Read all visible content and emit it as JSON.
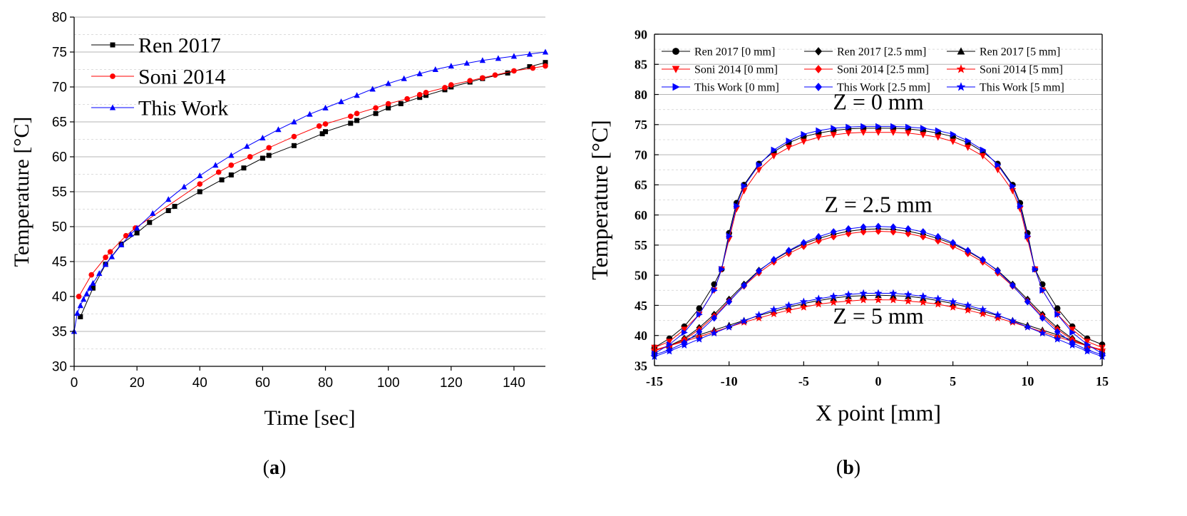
{
  "chart_data": [
    {
      "id": "a",
      "type": "line",
      "panel_label": "a",
      "xlabel": "Time [sec]",
      "ylabel": "Temperature [°C]",
      "xlim": [
        0,
        150
      ],
      "ylim": [
        30,
        80
      ],
      "xticks": [
        0,
        20,
        40,
        60,
        80,
        100,
        120,
        140
      ],
      "yticks": [
        30,
        35,
        40,
        45,
        50,
        55,
        60,
        65,
        70,
        75,
        80
      ],
      "grid": true,
      "legend_position": "top-left",
      "series": [
        {
          "name": "Ren 2017",
          "color": "#000000",
          "marker": "square",
          "x": [
            2,
            6,
            10,
            15,
            20,
            24,
            30,
            32,
            40,
            47,
            50,
            54,
            60,
            62,
            70,
            79,
            80,
            88,
            90,
            96,
            100,
            104,
            110,
            112,
            118,
            120,
            126,
            130,
            138,
            145,
            150
          ],
          "y": [
            37.1,
            41.2,
            44.6,
            47.5,
            49.1,
            50.6,
            52.3,
            52.9,
            55.0,
            56.7,
            57.4,
            58.4,
            59.8,
            60.2,
            61.6,
            63.3,
            63.6,
            64.8,
            65.2,
            66.2,
            67.0,
            67.6,
            68.5,
            68.8,
            69.6,
            70.0,
            70.7,
            71.2,
            72.0,
            72.9,
            73.5
          ]
        },
        {
          "name": "Soni 2014",
          "color": "#ff0000",
          "marker": "circle",
          "x": [
            1.5,
            5.5,
            10,
            11.5,
            16.5,
            19.5,
            40,
            46,
            50,
            56,
            62,
            70,
            78,
            80,
            88,
            90,
            96,
            100,
            106,
            110,
            112,
            118,
            120,
            126,
            130,
            134,
            140,
            146,
            150
          ],
          "y": [
            40.0,
            43.1,
            45.6,
            46.4,
            48.7,
            49.8,
            56.1,
            57.8,
            58.8,
            60.0,
            61.3,
            62.9,
            64.4,
            64.7,
            65.8,
            66.2,
            67.0,
            67.6,
            68.3,
            68.9,
            69.2,
            69.9,
            70.3,
            70.9,
            71.3,
            71.7,
            72.3,
            72.7,
            73.0
          ]
        },
        {
          "name": "This Work",
          "color": "#0000ff",
          "marker": "triangle",
          "x": [
            0,
            1,
            2,
            3,
            4,
            5,
            6,
            8,
            10,
            12,
            15,
            18,
            20,
            25,
            30,
            35,
            40,
            45,
            50,
            55,
            60,
            65,
            70,
            75,
            80,
            85,
            90,
            95,
            100,
            105,
            110,
            115,
            120,
            125,
            130,
            135,
            140,
            145,
            150
          ],
          "y": [
            35.0,
            37.6,
            38.7,
            39.6,
            40.4,
            41.2,
            41.9,
            43.3,
            44.6,
            45.7,
            47.4,
            48.9,
            49.8,
            51.9,
            53.9,
            55.7,
            57.3,
            58.8,
            60.2,
            61.5,
            62.7,
            63.9,
            65.0,
            66.1,
            67.0,
            67.9,
            68.8,
            69.7,
            70.5,
            71.2,
            71.9,
            72.5,
            73.0,
            73.4,
            73.8,
            74.1,
            74.4,
            74.7,
            75.0
          ]
        }
      ]
    },
    {
      "id": "b",
      "type": "line",
      "panel_label": "b",
      "xlabel": "X point [mm]",
      "ylabel": "Temperature [°C]",
      "xlim": [
        -15,
        15
      ],
      "ylim": [
        35,
        90
      ],
      "xticks": [
        -15,
        -10,
        -5,
        0,
        5,
        10,
        15
      ],
      "yticks": [
        35,
        40,
        45,
        50,
        55,
        60,
        65,
        70,
        75,
        80,
        85,
        90
      ],
      "grid": true,
      "legend_position": "top",
      "annotations": [
        {
          "text": "Z = 0 mm",
          "x": 0,
          "y": 77.5
        },
        {
          "text": "Z = 2.5 mm",
          "x": 0,
          "y": 60.5
        },
        {
          "text": "Z = 5 mm",
          "x": 0,
          "y": 42.0
        }
      ],
      "series": [
        {
          "name": "Ren 2017 [0 mm]",
          "color": "#000000",
          "marker": "circle",
          "x": [
            -15,
            -14,
            -13,
            -12,
            -11,
            -10.5,
            -10,
            -9.5,
            -9,
            -8,
            -7,
            -6,
            -5,
            -4,
            -3,
            -2,
            -1,
            0,
            1,
            2,
            3,
            4,
            5,
            6,
            7,
            8,
            9,
            9.5,
            10,
            10.5,
            11,
            12,
            13,
            14,
            15
          ],
          "y": [
            38.0,
            39.5,
            41.5,
            44.5,
            48.5,
            51.0,
            57.0,
            62.0,
            65.0,
            68.5,
            70.5,
            72.0,
            73.0,
            73.6,
            74.0,
            74.3,
            74.4,
            74.4,
            74.4,
            74.3,
            74.0,
            73.6,
            73.0,
            72.0,
            70.5,
            68.5,
            65.0,
            62.0,
            57.0,
            51.0,
            48.5,
            44.5,
            41.5,
            39.5,
            38.5
          ]
        },
        {
          "name": "Ren 2017 [2.5 mm]",
          "color": "#000000",
          "marker": "diamond",
          "x": [
            -15,
            -14,
            -13,
            -12,
            -11,
            -10,
            -9,
            -8,
            -7,
            -6,
            -5,
            -4,
            -3,
            -2,
            -1,
            0,
            1,
            2,
            3,
            4,
            5,
            6,
            7,
            8,
            9,
            10,
            11,
            12,
            13,
            14,
            15
          ],
          "y": [
            37.5,
            38.3,
            39.5,
            41.3,
            43.5,
            46.0,
            48.5,
            50.8,
            52.5,
            54.0,
            55.2,
            56.1,
            56.8,
            57.3,
            57.6,
            57.7,
            57.6,
            57.3,
            56.8,
            56.1,
            55.2,
            54.0,
            52.5,
            50.8,
            48.5,
            46.0,
            43.5,
            41.3,
            39.5,
            38.3,
            37.5
          ]
        },
        {
          "name": "Ren 2017 [5 mm]",
          "color": "#000000",
          "marker": "triangle",
          "x": [
            -15,
            -14,
            -13,
            -12,
            -11,
            -10,
            -9,
            -8,
            -7,
            -6,
            -5,
            -4,
            -3,
            -2,
            -1,
            0,
            1,
            2,
            3,
            4,
            5,
            6,
            7,
            8,
            9,
            10,
            11,
            12,
            13,
            14,
            15
          ],
          "y": [
            37.5,
            38.3,
            39.2,
            40.1,
            40.9,
            41.7,
            42.5,
            43.3,
            44.0,
            44.7,
            45.3,
            45.8,
            46.2,
            46.5,
            46.6,
            46.7,
            46.6,
            46.5,
            46.2,
            45.8,
            45.3,
            44.7,
            44.0,
            43.3,
            42.5,
            41.7,
            40.9,
            40.1,
            39.2,
            38.3,
            37.5
          ]
        },
        {
          "name": "Soni 2014 [0 mm]",
          "color": "#ff0000",
          "marker": "triangle-down",
          "x": [
            -15,
            -14,
            -13,
            -12,
            -11,
            -10.5,
            -10,
            -9.5,
            -9,
            -8,
            -7,
            -6,
            -5,
            -4,
            -3,
            -2,
            -1,
            0,
            1,
            2,
            3,
            4,
            5,
            6,
            7,
            8,
            9,
            9.5,
            10,
            10.5,
            11,
            12,
            13,
            14,
            15
          ],
          "y": [
            38.0,
            39.0,
            41.0,
            43.5,
            47.5,
            51.0,
            56.0,
            61.0,
            64.0,
            67.5,
            69.8,
            71.2,
            72.2,
            72.9,
            73.3,
            73.6,
            73.7,
            73.7,
            73.7,
            73.6,
            73.3,
            72.9,
            72.2,
            71.2,
            69.8,
            67.5,
            64.0,
            61.0,
            56.0,
            51.0,
            47.5,
            43.5,
            41.0,
            39.0,
            38.0
          ]
        },
        {
          "name": "Soni 2014 [2.5 mm]",
          "color": "#ff0000",
          "marker": "diamond",
          "x": [
            -15,
            -14,
            -13,
            -12,
            -11,
            -10,
            -9,
            -8,
            -7,
            -6,
            -5,
            -4,
            -3,
            -2,
            -1,
            0,
            1,
            2,
            3,
            4,
            5,
            6,
            7,
            8,
            9,
            10,
            11,
            12,
            13,
            14,
            15
          ],
          "y": [
            37.5,
            38.2,
            39.3,
            41.0,
            43.2,
            45.7,
            48.2,
            50.4,
            52.2,
            53.6,
            54.8,
            55.7,
            56.4,
            56.9,
            57.2,
            57.3,
            57.2,
            56.9,
            56.4,
            55.7,
            54.8,
            53.6,
            52.2,
            50.4,
            48.2,
            45.7,
            43.2,
            41.0,
            39.3,
            38.2,
            37.5
          ]
        },
        {
          "name": "Soni 2014 [5 mm]",
          "color": "#ff0000",
          "marker": "star",
          "x": [
            -15,
            -14,
            -13,
            -12,
            -11,
            -10,
            -9,
            -8,
            -7,
            -6,
            -5,
            -4,
            -3,
            -2,
            -1,
            0,
            1,
            2,
            3,
            4,
            5,
            6,
            7,
            8,
            9,
            10,
            11,
            12,
            13,
            14,
            15
          ],
          "y": [
            37.6,
            38.3,
            39.0,
            39.8,
            40.6,
            41.4,
            42.2,
            42.9,
            43.6,
            44.2,
            44.7,
            45.2,
            45.5,
            45.7,
            45.9,
            45.9,
            45.9,
            45.7,
            45.5,
            45.2,
            44.7,
            44.2,
            43.6,
            42.9,
            42.2,
            41.4,
            40.6,
            39.8,
            39.0,
            38.3,
            37.6
          ]
        },
        {
          "name": "This Work [0 mm]",
          "color": "#0000ff",
          "marker": "triangle-right",
          "x": [
            -15,
            -14,
            -13,
            -12,
            -11,
            -10.5,
            -10,
            -9.5,
            -9,
            -8,
            -7,
            -6,
            -5,
            -4,
            -3,
            -2,
            -1,
            0,
            1,
            2,
            3,
            4,
            5,
            6,
            7,
            8,
            9,
            9.5,
            10,
            10.5,
            11,
            12,
            13,
            14,
            15
          ],
          "y": [
            37.0,
            38.5,
            40.5,
            43.5,
            47.5,
            51.0,
            56.5,
            61.5,
            64.8,
            68.3,
            70.8,
            72.3,
            73.4,
            74.0,
            74.4,
            74.6,
            74.7,
            74.7,
            74.7,
            74.6,
            74.4,
            74.0,
            73.4,
            72.3,
            70.8,
            68.3,
            64.8,
            61.5,
            56.5,
            51.0,
            47.5,
            43.5,
            40.5,
            38.5,
            37.0
          ]
        },
        {
          "name": "This Work [2.5 mm]",
          "color": "#0000ff",
          "marker": "diamond",
          "x": [
            -15,
            -14,
            -13,
            -12,
            -11,
            -10,
            -9,
            -8,
            -7,
            -6,
            -5,
            -4,
            -3,
            -2,
            -1,
            0,
            1,
            2,
            3,
            4,
            5,
            6,
            7,
            8,
            9,
            10,
            11,
            12,
            13,
            14,
            15
          ],
          "y": [
            36.8,
            37.6,
            38.8,
            40.6,
            42.9,
            45.6,
            48.3,
            50.7,
            52.6,
            54.1,
            55.4,
            56.4,
            57.2,
            57.7,
            58.0,
            58.1,
            58.0,
            57.7,
            57.2,
            56.4,
            55.4,
            54.1,
            52.6,
            50.7,
            48.3,
            45.6,
            42.9,
            40.6,
            38.8,
            37.6,
            36.8
          ]
        },
        {
          "name": "This Work [5 mm]",
          "color": "#0000ff",
          "marker": "star",
          "x": [
            -15,
            -14,
            -13,
            -12,
            -11,
            -10,
            -9,
            -8,
            -7,
            -6,
            -5,
            -4,
            -3,
            -2,
            -1,
            0,
            1,
            2,
            3,
            4,
            5,
            6,
            7,
            8,
            9,
            10,
            11,
            12,
            13,
            14,
            15
          ],
          "y": [
            36.5,
            37.4,
            38.4,
            39.4,
            40.4,
            41.4,
            42.4,
            43.4,
            44.3,
            45.0,
            45.6,
            46.1,
            46.5,
            46.8,
            47.0,
            47.0,
            47.0,
            46.8,
            46.5,
            46.1,
            45.6,
            45.0,
            44.3,
            43.4,
            42.4,
            41.4,
            40.4,
            39.4,
            38.4,
            37.4,
            36.5
          ]
        }
      ]
    }
  ]
}
